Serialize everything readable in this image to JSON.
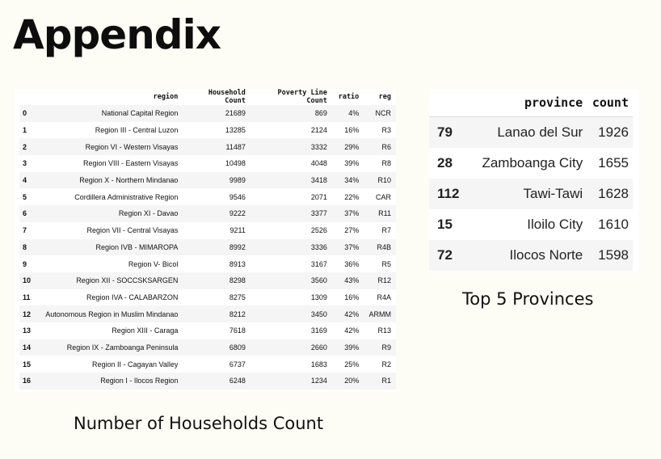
{
  "title": "Appendix",
  "households_table": {
    "caption": "Number of Households Count",
    "columns": {
      "index": "",
      "region": "region",
      "household_count": "Household Count",
      "poverty_line_count": "Poverty Line Count",
      "ratio": "ratio",
      "reg": "reg"
    },
    "rows": [
      {
        "index": "0",
        "region": "National Capital Region",
        "household_count": "21689",
        "poverty_line_count": "869",
        "ratio": "4%",
        "reg": "NCR"
      },
      {
        "index": "1",
        "region": "Region III - Central Luzon",
        "household_count": "13285",
        "poverty_line_count": "2124",
        "ratio": "16%",
        "reg": "R3"
      },
      {
        "index": "2",
        "region": "Region VI - Western Visayas",
        "household_count": "11487",
        "poverty_line_count": "3332",
        "ratio": "29%",
        "reg": "R6"
      },
      {
        "index": "3",
        "region": "Region VIII - Eastern Visayas",
        "household_count": "10498",
        "poverty_line_count": "4048",
        "ratio": "39%",
        "reg": "R8"
      },
      {
        "index": "4",
        "region": "Region X - Northern Mindanao",
        "household_count": "9989",
        "poverty_line_count": "3418",
        "ratio": "34%",
        "reg": "R10"
      },
      {
        "index": "5",
        "region": "Cordillera Administrative Region",
        "household_count": "9546",
        "poverty_line_count": "2071",
        "ratio": "22%",
        "reg": "CAR"
      },
      {
        "index": "6",
        "region": "Region XI - Davao",
        "household_count": "9222",
        "poverty_line_count": "3377",
        "ratio": "37%",
        "reg": "R11"
      },
      {
        "index": "7",
        "region": "Region VII - Central Visayas",
        "household_count": "9211",
        "poverty_line_count": "2526",
        "ratio": "27%",
        "reg": "R7"
      },
      {
        "index": "8",
        "region": "Region IVB - MIMAROPA",
        "household_count": "8992",
        "poverty_line_count": "3336",
        "ratio": "37%",
        "reg": "R4B"
      },
      {
        "index": "9",
        "region": "Region V- Bicol",
        "household_count": "8913",
        "poverty_line_count": "3167",
        "ratio": "36%",
        "reg": "R5"
      },
      {
        "index": "10",
        "region": "Region XII - SOCCSKSARGEN",
        "household_count": "8298",
        "poverty_line_count": "3560",
        "ratio": "43%",
        "reg": "R12"
      },
      {
        "index": "11",
        "region": "Region IVA - CALABARZON",
        "household_count": "8275",
        "poverty_line_count": "1309",
        "ratio": "16%",
        "reg": "R4A"
      },
      {
        "index": "12",
        "region": "Autonomous Region in Muslim Mindanao",
        "household_count": "8212",
        "poverty_line_count": "3450",
        "ratio": "42%",
        "reg": "ARMM"
      },
      {
        "index": "13",
        "region": "Region XIII - Caraga",
        "household_count": "7618",
        "poverty_line_count": "3169",
        "ratio": "42%",
        "reg": "R13"
      },
      {
        "index": "14",
        "region": "Region IX - Zamboanga Peninsula",
        "household_count": "6809",
        "poverty_line_count": "2660",
        "ratio": "39%",
        "reg": "R9"
      },
      {
        "index": "15",
        "region": "Region II - Cagayan Valley",
        "household_count": "6737",
        "poverty_line_count": "1683",
        "ratio": "25%",
        "reg": "R2"
      },
      {
        "index": "16",
        "region": "Region I - Ilocos Region",
        "household_count": "6248",
        "poverty_line_count": "1234",
        "ratio": "20%",
        "reg": "R1"
      }
    ]
  },
  "provinces_table": {
    "caption": "Top 5 Provinces",
    "columns": {
      "index": "",
      "province": "province",
      "count": "count"
    },
    "rows": [
      {
        "index": "79",
        "province": "Lanao del Sur",
        "count": "1926"
      },
      {
        "index": "28",
        "province": "Zamboanga City",
        "count": "1655"
      },
      {
        "index": "112",
        "province": "Tawi-Tawi",
        "count": "1628"
      },
      {
        "index": "15",
        "province": "Iloilo City",
        "count": "1610"
      },
      {
        "index": "72",
        "province": "Ilocos Norte",
        "count": "1598"
      }
    ]
  }
}
